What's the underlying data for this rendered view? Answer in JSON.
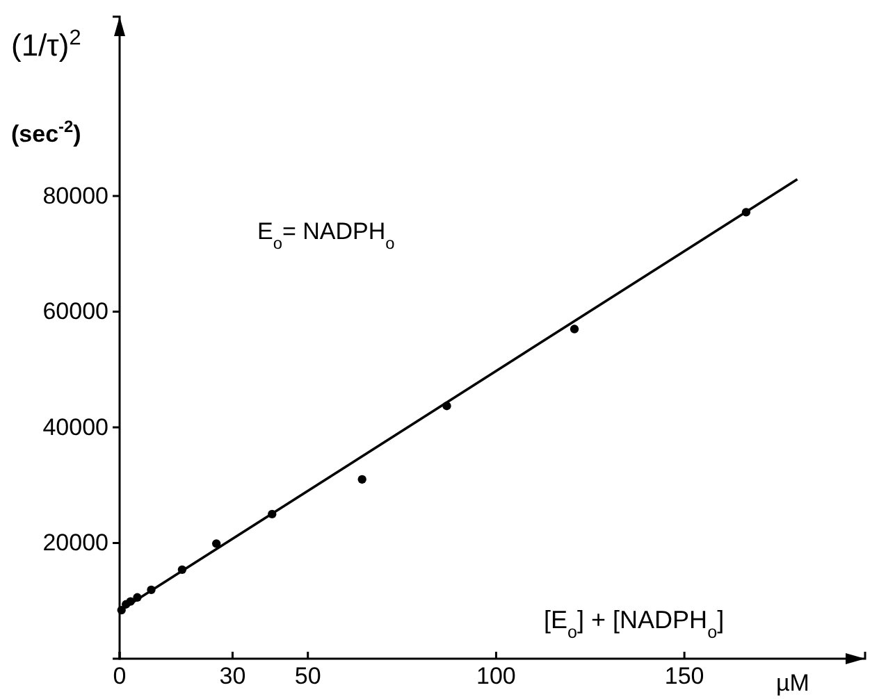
{
  "chart_data": {
    "type": "scatter",
    "xlabel": "[E$_{o}$] + [NADPH$_{o}$]",
    "ylabel": "(1/τ)$^{2}$\n(sec$^{-2}$)",
    "annotations": [
      "E$_{o}$= NADPH$_{o}$",
      "µM"
    ],
    "grid": false,
    "xlim": [
      0,
      198
    ],
    "ylim": [
      0,
      111000
    ],
    "xticks": [
      0,
      30,
      50,
      100,
      150
    ],
    "yticks": [
      20000,
      40000,
      60000,
      80000
    ],
    "series": [
      {
        "marker": "circle",
        "color": "#000000",
        "x": [
          0.5,
          1.7,
          2.9,
          4.7,
          8.4,
          16.6,
          25.7,
          40.5,
          64.4,
          86.9,
          120.8,
          166.4
        ],
        "values": [
          8400,
          9400,
          9900,
          10600,
          11900,
          15400,
          19900,
          25000,
          31000,
          43700,
          57000,
          77200
        ]
      },
      {
        "type": "line",
        "color": "#000000",
        "line_style": "solid",
        "x": [
          0,
          180
        ],
        "values": [
          8300,
          82900
        ]
      }
    ]
  }
}
